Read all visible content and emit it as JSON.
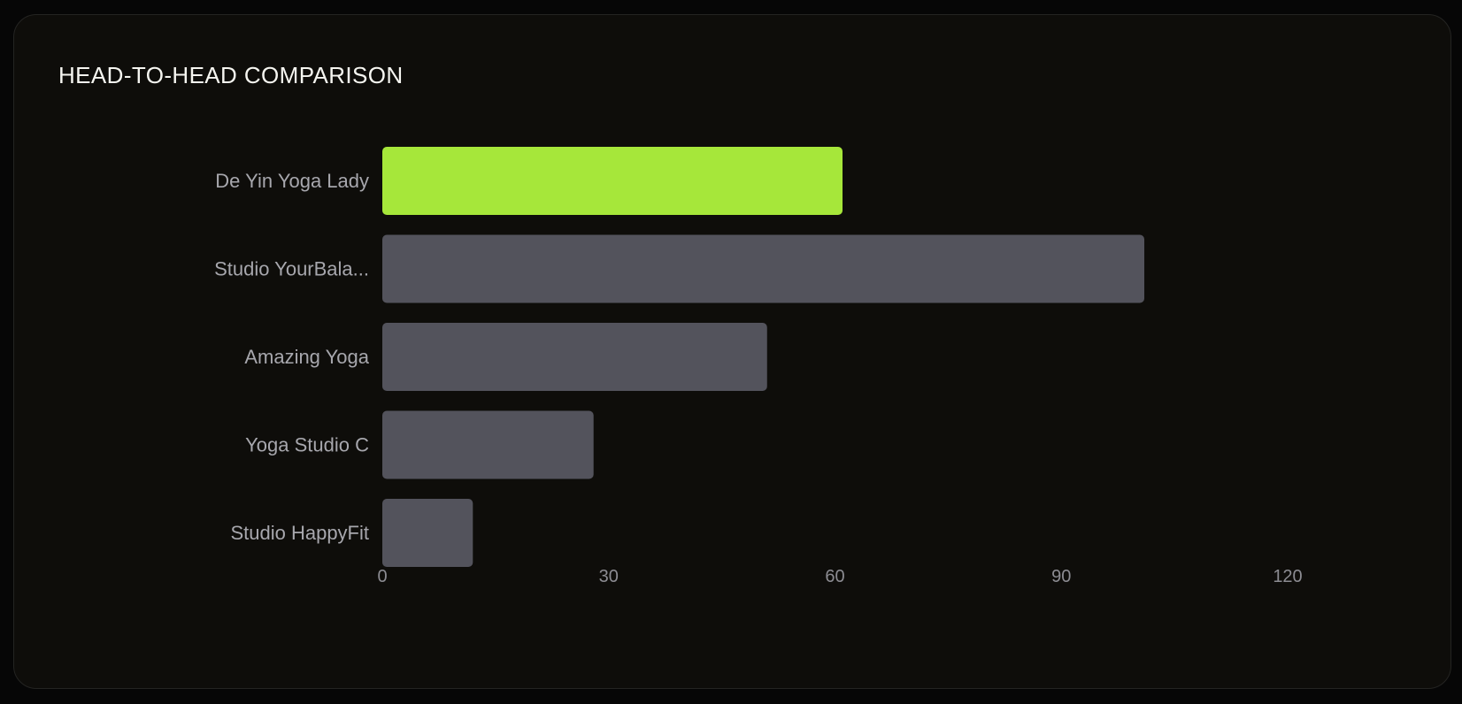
{
  "chart_data": {
    "type": "bar",
    "orientation": "horizontal",
    "title": "HEAD-TO-HEAD COMPARISON",
    "categories": [
      "De Yin Yoga Lady",
      "Studio YourBala...",
      "Amazing Yoga",
      "Yoga Studio C",
      "Studio HappyFit"
    ],
    "values": [
      61,
      101,
      51,
      28,
      12
    ],
    "highlight_index": 0,
    "xlim": [
      0,
      120
    ],
    "xticks": [
      0,
      30,
      60,
      90,
      120
    ],
    "grid": false,
    "legend": "none",
    "colors": {
      "highlight": "#a6e73a",
      "default": "#53535c"
    }
  }
}
